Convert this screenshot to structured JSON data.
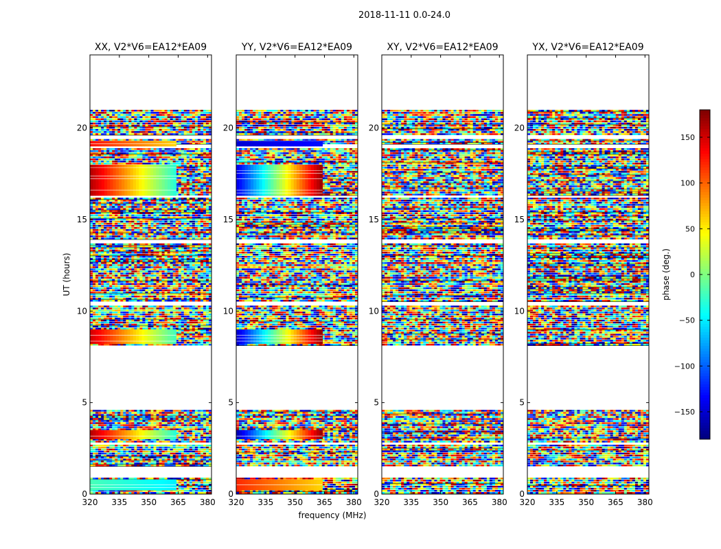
{
  "chart_data": {
    "type": "heatmap",
    "suptitle": "2018-11-11 0.0-24.0",
    "xlabel": "frequency (MHz)",
    "ylabel": "UT (hours)",
    "colorbar_label": "phase (deg.)",
    "colormap": "jet",
    "clim": [
      -180,
      180
    ],
    "colorbar_ticks": [
      150,
      100,
      50,
      0,
      -50,
      -100,
      -150
    ],
    "xlim": [
      320,
      382
    ],
    "ylim": [
      0,
      24
    ],
    "x_ticks": [
      320,
      335,
      350,
      365,
      380
    ],
    "y_ticks": [
      0,
      5,
      10,
      15,
      20
    ],
    "data_blocks_ut": [
      [
        0.0,
        0.9
      ],
      [
        1.5,
        2.7
      ],
      [
        2.8,
        4.6
      ],
      [
        8.1,
        10.3
      ],
      [
        10.5,
        13.7
      ],
      [
        13.9,
        16.2
      ],
      [
        16.3,
        18.9
      ],
      [
        19.1,
        19.4
      ],
      [
        19.6,
        21.0
      ]
    ],
    "panels": [
      {
        "title": "XX, V2*V6=EA12*EA09",
        "smooth_regions": [
          {
            "ut": [
              16.3,
              18.0
            ],
            "freq": [
              320,
              364
            ],
            "phase_start": 160,
            "phase_end": -30
          },
          {
            "ut": [
              8.2,
              9.0
            ],
            "freq": [
              320,
              364
            ],
            "phase_start": 150,
            "phase_end": -20
          },
          {
            "ut": [
              3.0,
              3.5
            ],
            "freq": [
              320,
              364
            ],
            "phase_start": 160,
            "phase_end": -30
          },
          {
            "ut": [
              0.2,
              0.8
            ],
            "freq": [
              320,
              364
            ],
            "phase_start": -20,
            "phase_end": -50
          },
          {
            "ut": [
              19.0,
              19.3
            ],
            "freq": [
              320,
              364
            ],
            "phase_start": 130,
            "phase_end": 60
          }
        ]
      },
      {
        "title": "YY, V2*V6=EA12*EA09",
        "smooth_regions": [
          {
            "ut": [
              16.3,
              18.0
            ],
            "freq": [
              320,
              364
            ],
            "phase_start": -140,
            "phase_end": 170
          },
          {
            "ut": [
              8.2,
              9.0
            ],
            "freq": [
              320,
              364
            ],
            "phase_start": -150,
            "phase_end": 170
          },
          {
            "ut": [
              3.0,
              3.5
            ],
            "freq": [
              320,
              364
            ],
            "phase_start": -160,
            "phase_end": 170
          },
          {
            "ut": [
              0.2,
              0.8
            ],
            "freq": [
              320,
              364
            ],
            "phase_start": 120,
            "phase_end": 60
          },
          {
            "ut": [
              19.0,
              19.3
            ],
            "freq": [
              320,
              364
            ],
            "phase_start": -150,
            "phase_end": -130
          }
        ]
      },
      {
        "title": "XY, V2*V6=EA12*EA09",
        "smooth_regions": []
      },
      {
        "title": "YX, V2*V6=EA12*EA09",
        "smooth_regions": []
      }
    ]
  }
}
